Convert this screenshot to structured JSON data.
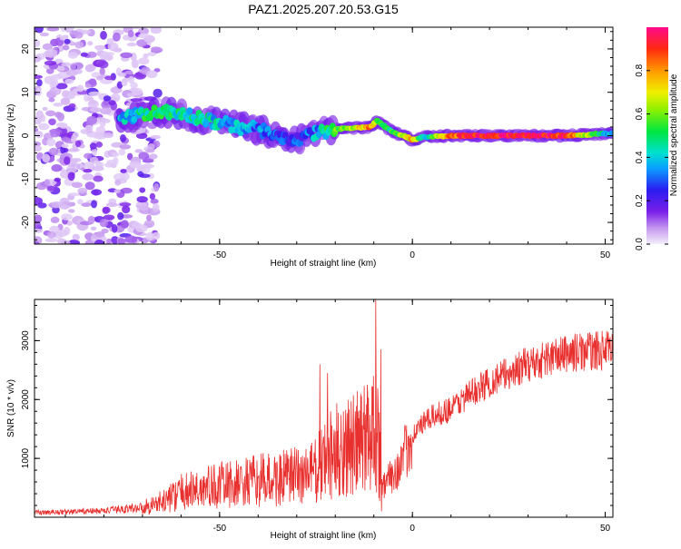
{
  "title": "PAZ1.2025.207.20.53.G15",
  "colors": {
    "snr_line": "#e8302e",
    "frame": "#000000",
    "background": "#ffffff"
  },
  "chart_data": [
    {
      "type": "heatmap",
      "xlabel": "Height of straight line (km)",
      "ylabel": "Frequency (Hz)",
      "xlim": [
        -98,
        52
      ],
      "ylim": [
        -25,
        25
      ],
      "x_ticks": [
        -50,
        0,
        50
      ],
      "x_tick_labels": [
        "-50",
        "0",
        "50"
      ],
      "y_ticks": [
        -20,
        -10,
        0,
        10,
        20
      ],
      "y_tick_labels": [
        "-20",
        "-10",
        "0",
        "10",
        "20"
      ],
      "colorbar": {
        "label": "Normalized spectral amplitude",
        "range": [
          0,
          1
        ],
        "ticks": [
          0.0,
          0.2,
          0.4,
          0.6,
          0.8
        ],
        "tick_labels": [
          "0.0",
          "0.2",
          "0.4",
          "0.6",
          "0.8"
        ],
        "colormap": "rainbow"
      },
      "ridge": [
        [
          -76,
          3.5
        ],
        [
          -70,
          5.0
        ],
        [
          -65,
          5.5
        ],
        [
          -60,
          5.0
        ],
        [
          -55,
          4.0
        ],
        [
          -50,
          3.0
        ],
        [
          -45,
          2.0
        ],
        [
          -40,
          1.5
        ],
        [
          -35,
          0.0
        ],
        [
          -30,
          -1.0
        ],
        [
          -25,
          0.5
        ],
        [
          -20,
          1.5
        ],
        [
          -15,
          1.8
        ],
        [
          -11,
          2.0
        ],
        [
          -9,
          3.5
        ],
        [
          -7,
          2.0
        ],
        [
          -4,
          0.5
        ],
        [
          -1,
          -0.5
        ],
        [
          0,
          -1.0
        ],
        [
          3,
          -0.3
        ],
        [
          10,
          0.0
        ],
        [
          20,
          0.0
        ],
        [
          30,
          0.0
        ],
        [
          40,
          0.0
        ],
        [
          50,
          0.5
        ],
        [
          52,
          0.5
        ]
      ],
      "ridge_strength": [
        [
          -76,
          0.35
        ],
        [
          -70,
          0.45
        ],
        [
          -65,
          0.5
        ],
        [
          -60,
          0.45
        ],
        [
          -55,
          0.45
        ],
        [
          -50,
          0.4
        ],
        [
          -45,
          0.35
        ],
        [
          -40,
          0.3
        ],
        [
          -35,
          0.3
        ],
        [
          -30,
          0.25
        ],
        [
          -25,
          0.35
        ],
        [
          -20,
          0.55
        ],
        [
          -15,
          0.65
        ],
        [
          -11,
          0.8
        ],
        [
          -9,
          0.6
        ],
        [
          -7,
          0.45
        ],
        [
          -4,
          0.55
        ],
        [
          -1,
          0.7
        ],
        [
          0,
          0.8
        ],
        [
          3,
          0.35
        ],
        [
          10,
          0.85
        ],
        [
          20,
          0.95
        ],
        [
          30,
          0.95
        ],
        [
          40,
          0.9
        ],
        [
          50,
          0.4
        ],
        [
          52,
          0.3
        ]
      ],
      "noise_region": [
        -98,
        -66
      ]
    },
    {
      "type": "line",
      "xlabel": "Height of straight line (km)",
      "ylabel": "SNR (10 * v/v)",
      "xlim": [
        -98,
        52
      ],
      "ylim": [
        0,
        3700
      ],
      "x_ticks": [
        -50,
        0,
        50
      ],
      "x_tick_labels": [
        "-50",
        "0",
        "50"
      ],
      "y_ticks": [
        1000,
        2000,
        3000
      ],
      "y_tick_labels": [
        "1000",
        "2000",
        "3000"
      ],
      "series": [
        {
          "color": "#e8302e",
          "trend": [
            [
              -98,
              80
            ],
            [
              -90,
              90
            ],
            [
              -80,
              110
            ],
            [
              -70,
              170
            ],
            [
              -65,
              260
            ],
            [
              -60,
              420
            ],
            [
              -55,
              480
            ],
            [
              -50,
              540
            ],
            [
              -45,
              560
            ],
            [
              -40,
              620
            ],
            [
              -35,
              640
            ],
            [
              -30,
              700
            ],
            [
              -25,
              780
            ],
            [
              -22,
              1000
            ],
            [
              -18,
              1200
            ],
            [
              -15,
              1200
            ],
            [
              -12,
              1350
            ],
            [
              -10,
              1600
            ],
            [
              -9,
              1500
            ],
            [
              -8,
              500
            ],
            [
              -6,
              650
            ],
            [
              -3,
              900
            ],
            [
              0,
              1400
            ],
            [
              2,
              1550
            ],
            [
              5,
              1700
            ],
            [
              10,
              1850
            ],
            [
              15,
              2100
            ],
            [
              20,
              2300
            ],
            [
              25,
              2450
            ],
            [
              30,
              2600
            ],
            [
              35,
              2700
            ],
            [
              40,
              2780
            ],
            [
              45,
              2820
            ],
            [
              50,
              2830
            ],
            [
              52,
              2830
            ]
          ],
          "spikes": [
            [
              -24,
              2600
            ],
            [
              -22,
              2450
            ],
            [
              -9.5,
              3700
            ],
            [
              -8.2,
              2850
            ],
            [
              -8.0,
              100
            ],
            [
              -24.5,
              420
            ],
            [
              -21,
              300
            ]
          ]
        }
      ]
    }
  ]
}
